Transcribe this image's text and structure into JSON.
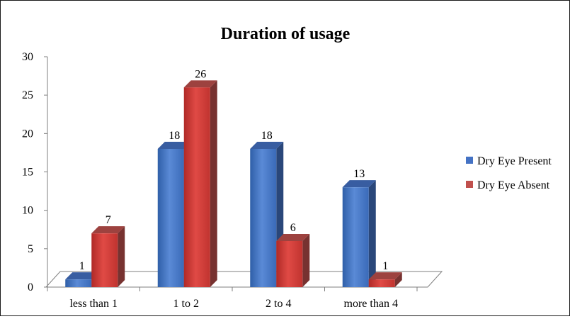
{
  "chart_data": {
    "type": "bar",
    "title": "Duration of usage",
    "xlabel": "",
    "ylabel": "",
    "categories": [
      "less than 1",
      "1 to 2",
      "2 to 4",
      "more than 4"
    ],
    "series": [
      {
        "name": "Dry Eye Present",
        "values": [
          1,
          18,
          18,
          13
        ],
        "color": "#4472C4"
      },
      {
        "name": "Dry Eye Absent",
        "values": [
          7,
          26,
          6,
          1
        ],
        "color": "#C0504D"
      }
    ],
    "yticks": [
      "0",
      "5",
      "10",
      "15",
      "20",
      "25",
      "30"
    ],
    "ylim": [
      0,
      30
    ],
    "grid": false,
    "legend_position": "right",
    "style": "3d-clustered-column"
  }
}
